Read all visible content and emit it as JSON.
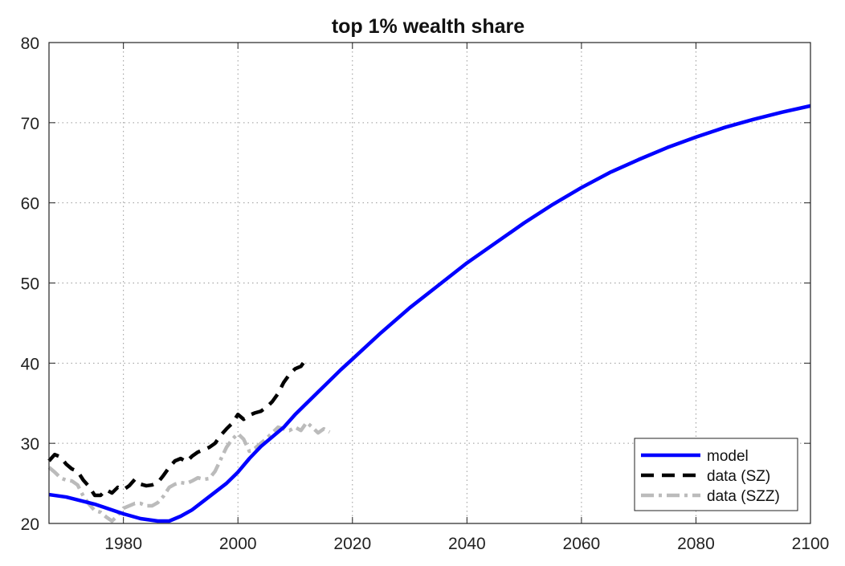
{
  "chart_data": {
    "type": "line",
    "title": "top 1% wealth share",
    "xlabel": "",
    "ylabel": "",
    "xlim": [
      1967,
      2100
    ],
    "ylim": [
      20,
      80
    ],
    "grid": true,
    "legend_position": "bottom-right",
    "x_ticks": [
      "1980",
      "2000",
      "2020",
      "2040",
      "2060",
      "2080",
      "2100"
    ],
    "y_ticks": [
      "20",
      "30",
      "40",
      "50",
      "60",
      "70",
      "80"
    ],
    "series": [
      {
        "name": "model",
        "color": "#0000ff",
        "style": "solid",
        "x": [
          1967,
          1970,
          1975,
          1980,
          1983,
          1986,
          1988,
          1990,
          1992,
          1994,
          1996,
          1998,
          2000,
          2002,
          2004,
          2006,
          2008,
          2010,
          2012,
          2014,
          2016,
          2018,
          2020,
          2025,
          2030,
          2035,
          2040,
          2045,
          2050,
          2055,
          2060,
          2065,
          2070,
          2075,
          2080,
          2085,
          2090,
          2095,
          2100
        ],
        "y": [
          23.6,
          23.3,
          22.4,
          21.2,
          20.6,
          20.3,
          20.3,
          20.9,
          21.7,
          22.8,
          23.9,
          25.0,
          26.4,
          28.1,
          29.6,
          30.8,
          32.0,
          33.6,
          35.0,
          36.4,
          37.8,
          39.2,
          40.5,
          43.8,
          46.9,
          49.7,
          52.5,
          55.0,
          57.5,
          59.8,
          61.9,
          63.8,
          65.4,
          66.9,
          68.2,
          69.4,
          70.4,
          71.3,
          72.1
        ]
      },
      {
        "name": "data (SZ)",
        "color": "#000000",
        "style": "dashed",
        "x": [
          1967,
          1968,
          1969,
          1970,
          1971,
          1972,
          1973,
          1974,
          1975,
          1976,
          1977,
          1978,
          1979,
          1980,
          1981,
          1982,
          1983,
          1984,
          1985,
          1986,
          1987,
          1988,
          1989,
          1990,
          1991,
          1992,
          1993,
          1994,
          1995,
          1996,
          1997,
          1998,
          1999,
          2000,
          2001,
          2002,
          2003,
          2004,
          2005,
          2006,
          2007,
          2008,
          2009,
          2010,
          2011,
          2012
        ],
        "y": [
          27.8,
          28.6,
          28.3,
          27.4,
          26.8,
          26.5,
          25.4,
          24.6,
          23.5,
          23.5,
          24.2,
          23.8,
          24.5,
          24.2,
          24.7,
          25.5,
          24.9,
          24.7,
          24.8,
          25.1,
          26.0,
          27.0,
          27.8,
          28.1,
          27.7,
          28.4,
          28.9,
          29.2,
          29.5,
          30.0,
          31.0,
          31.8,
          32.5,
          33.6,
          33.0,
          33.5,
          33.8,
          34.0,
          34.5,
          35.2,
          36.2,
          37.6,
          38.6,
          39.3,
          39.6,
          40.6
        ]
      },
      {
        "name": "data (SZZ)",
        "color": "#bbbbbb",
        "style": "dashdot",
        "x": [
          1967,
          1968,
          1969,
          1970,
          1971,
          1972,
          1973,
          1974,
          1975,
          1976,
          1977,
          1978,
          1979,
          1980,
          1981,
          1982,
          1983,
          1984,
          1985,
          1986,
          1987,
          1988,
          1989,
          1990,
          1991,
          1992,
          1993,
          1994,
          1995,
          1996,
          1997,
          1998,
          1999,
          2000,
          2001,
          2002,
          2003,
          2004,
          2005,
          2006,
          2007,
          2008,
          2009,
          2010,
          2011,
          2012,
          2013,
          2014,
          2015,
          2016
        ],
        "y": [
          27.0,
          26.4,
          25.7,
          25.4,
          25.3,
          24.8,
          23.4,
          22.4,
          21.6,
          21.4,
          20.8,
          20.3,
          21.0,
          21.9,
          22.2,
          22.5,
          22.5,
          22.2,
          22.2,
          22.6,
          23.4,
          24.5,
          24.9,
          25.1,
          25.0,
          25.3,
          25.7,
          25.5,
          25.6,
          26.5,
          28.0,
          29.5,
          30.5,
          31.2,
          30.5,
          29.0,
          29.4,
          30.0,
          30.6,
          31.3,
          32.0,
          31.8,
          31.6,
          32.0,
          31.6,
          32.6,
          32.0,
          31.3,
          31.8,
          31.4
        ]
      }
    ]
  }
}
